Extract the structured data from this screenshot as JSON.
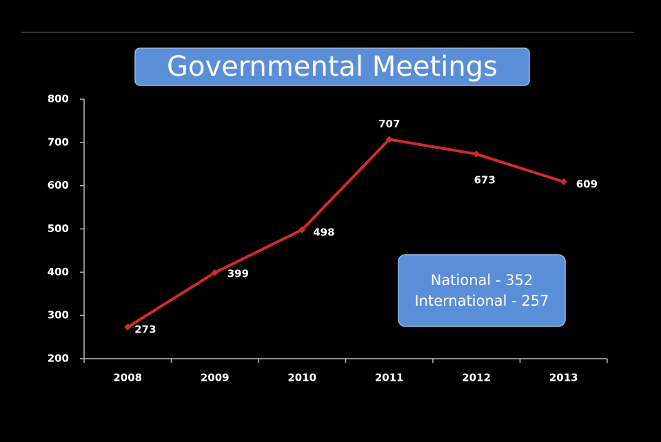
{
  "chart_data": {
    "type": "line",
    "title": "Governmental Meetings",
    "categories": [
      "2008",
      "2009",
      "2010",
      "2011",
      "2012",
      "2013"
    ],
    "values": [
      273,
      399,
      498,
      707,
      673,
      609
    ],
    "color": "#d42a2a",
    "ylim": [
      200,
      800
    ],
    "yticks": [
      200,
      300,
      400,
      500,
      600,
      700,
      800
    ],
    "annotations": [
      "National - 352",
      "International - 257"
    ]
  }
}
